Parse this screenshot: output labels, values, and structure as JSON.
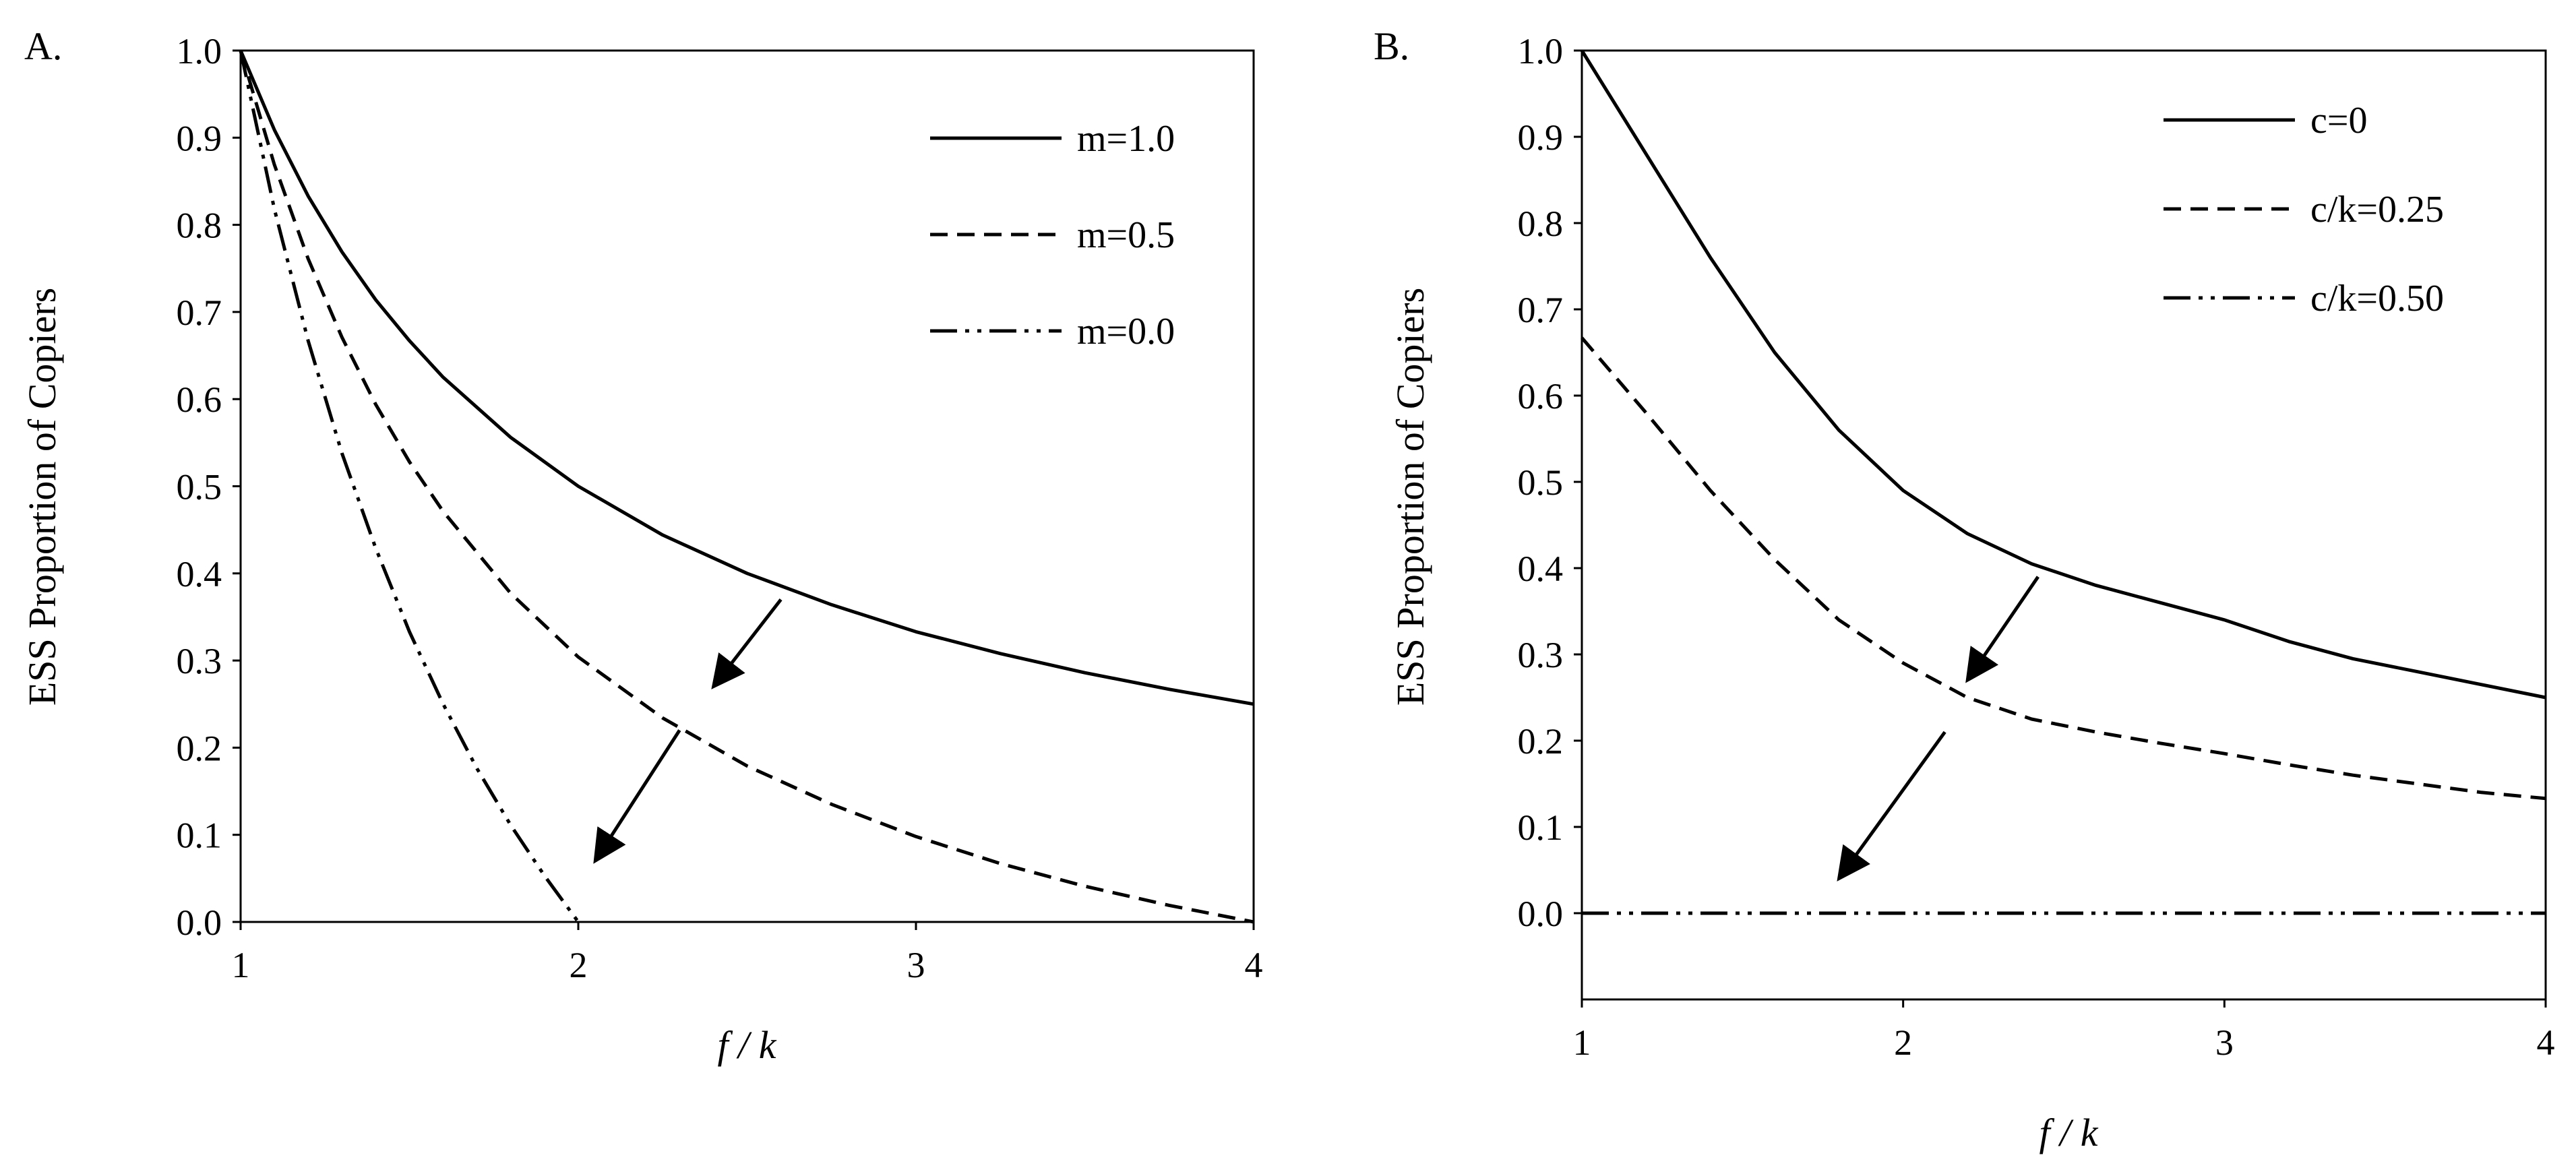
{
  "chart_data": [
    {
      "panel_label": "A.",
      "type": "line",
      "xlabel": "f / k",
      "ylabel": "ESS Proportion of Copiers",
      "xlim": [
        1,
        4
      ],
      "ylim": [
        0,
        1
      ],
      "x_ticks": [
        "1",
        "2",
        "3",
        "4"
      ],
      "y_ticks": [
        "0.0",
        "0.1",
        "0.2",
        "0.3",
        "0.4",
        "0.5",
        "0.6",
        "0.7",
        "0.8",
        "0.9",
        "1.0"
      ],
      "legend_position": "top-right",
      "grid": false,
      "series": [
        {
          "name": "m=1.0",
          "style": "solid",
          "x": [
            1.0,
            1.1,
            1.2,
            1.3,
            1.4,
            1.5,
            1.6,
            1.8,
            2.0,
            2.25,
            2.5,
            2.75,
            3.0,
            3.25,
            3.5,
            3.75,
            4.0
          ],
          "y": [
            1.0,
            0.909,
            0.833,
            0.769,
            0.714,
            0.667,
            0.625,
            0.556,
            0.5,
            0.444,
            0.4,
            0.364,
            0.333,
            0.308,
            0.286,
            0.267,
            0.25
          ]
        },
        {
          "name": "m=0.5",
          "style": "dashed",
          "x": [
            1.0,
            1.1,
            1.2,
            1.3,
            1.4,
            1.5,
            1.6,
            1.8,
            2.0,
            2.25,
            2.5,
            2.75,
            3.0,
            3.25,
            3.5,
            3.75,
            4.0
          ],
          "y": [
            1.0,
            0.869,
            0.761,
            0.671,
            0.594,
            0.528,
            0.471,
            0.377,
            0.304,
            0.234,
            0.179,
            0.135,
            0.098,
            0.067,
            0.041,
            0.019,
            0.0
          ]
        },
        {
          "name": "m=0.0",
          "style": "dash-dot-dot",
          "x": [
            1.0,
            1.1,
            1.2,
            1.3,
            1.4,
            1.5,
            1.6,
            1.7,
            1.8,
            1.9,
            2.0
          ],
          "y": [
            1.0,
            0.818,
            0.667,
            0.538,
            0.429,
            0.333,
            0.25,
            0.176,
            0.111,
            0.053,
            0.0
          ]
        }
      ],
      "arrows": [
        {
          "from": [
            2.6,
            0.37
          ],
          "to": [
            2.4,
            0.27
          ]
        },
        {
          "from": [
            2.3,
            0.22
          ],
          "to": [
            2.05,
            0.07
          ]
        }
      ]
    },
    {
      "panel_label": "B.",
      "type": "line",
      "xlabel": "f / k",
      "ylabel": "ESS Proportion of Copiers",
      "xlim": [
        1,
        4
      ],
      "ylim": [
        -0.1,
        1
      ],
      "x_ticks": [
        "1",
        "2",
        "3",
        "4"
      ],
      "y_ticks": [
        "0.0",
        "0.1",
        "0.2",
        "0.3",
        "0.4",
        "0.5",
        "0.6",
        "0.7",
        "0.8",
        "0.9",
        "1.0"
      ],
      "legend_position": "top-right",
      "grid": false,
      "series": [
        {
          "name": "c=0",
          "style": "solid",
          "x": [
            1.0,
            1.2,
            1.4,
            1.6,
            1.8,
            2.0,
            2.2,
            2.4,
            2.6,
            2.8,
            3.0,
            3.2,
            3.4,
            3.6,
            3.8,
            4.0
          ],
          "y": [
            1.0,
            0.88,
            0.76,
            0.65,
            0.56,
            0.49,
            0.44,
            0.405,
            0.38,
            0.36,
            0.34,
            0.315,
            0.295,
            0.28,
            0.265,
            0.25
          ]
        },
        {
          "name": "c/k=0.25",
          "style": "dashed",
          "x": [
            1.0,
            1.2,
            1.4,
            1.6,
            1.8,
            2.0,
            2.2,
            2.4,
            2.6,
            2.8,
            3.0,
            3.2,
            3.4,
            3.6,
            3.8,
            4.0
          ],
          "y": [
            0.667,
            0.58,
            0.49,
            0.41,
            0.34,
            0.29,
            0.25,
            0.225,
            0.21,
            0.197,
            0.185,
            0.172,
            0.16,
            0.15,
            0.14,
            0.133
          ]
        },
        {
          "name": "c/k=0.50",
          "style": "dash-dot-dot",
          "x": [
            1.0,
            4.0
          ],
          "y": [
            0.0,
            0.0
          ]
        }
      ],
      "arrows": [
        {
          "from": [
            2.42,
            0.39
          ],
          "to": [
            2.2,
            0.27
          ]
        },
        {
          "from": [
            2.13,
            0.21
          ],
          "to": [
            1.8,
            0.04
          ]
        }
      ]
    }
  ]
}
